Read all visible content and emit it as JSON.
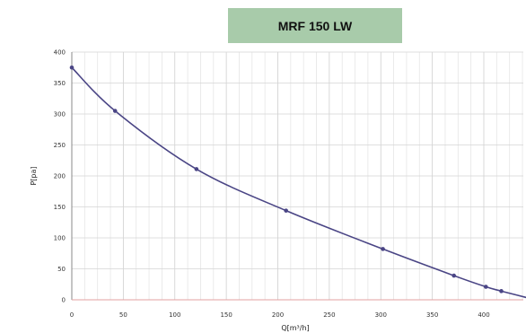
{
  "chart_data": {
    "type": "line",
    "title": "MRF 150 LW",
    "xlabel": "Q[m³/h]",
    "ylabel": "P[pa]",
    "xlim": [
      0,
      450
    ],
    "ylim": [
      0,
      400
    ],
    "x_ticks": [
      0,
      50,
      100,
      150,
      200,
      250,
      300,
      350,
      400
    ],
    "y_ticks": [
      0,
      50,
      100,
      150,
      200,
      250,
      300,
      350,
      400
    ],
    "grid": true,
    "series": [
      {
        "color": "#4a4585",
        "points": [
          {
            "x": 0,
            "y": 375
          },
          {
            "x": 42,
            "y": 305
          },
          {
            "x": 121,
            "y": 211
          },
          {
            "x": 208,
            "y": 144
          },
          {
            "x": 302,
            "y": 82
          },
          {
            "x": 371,
            "y": 39
          },
          {
            "x": 402,
            "y": 21
          },
          {
            "x": 417,
            "y": 14
          },
          {
            "x": 450,
            "y": 0
          }
        ]
      }
    ]
  }
}
